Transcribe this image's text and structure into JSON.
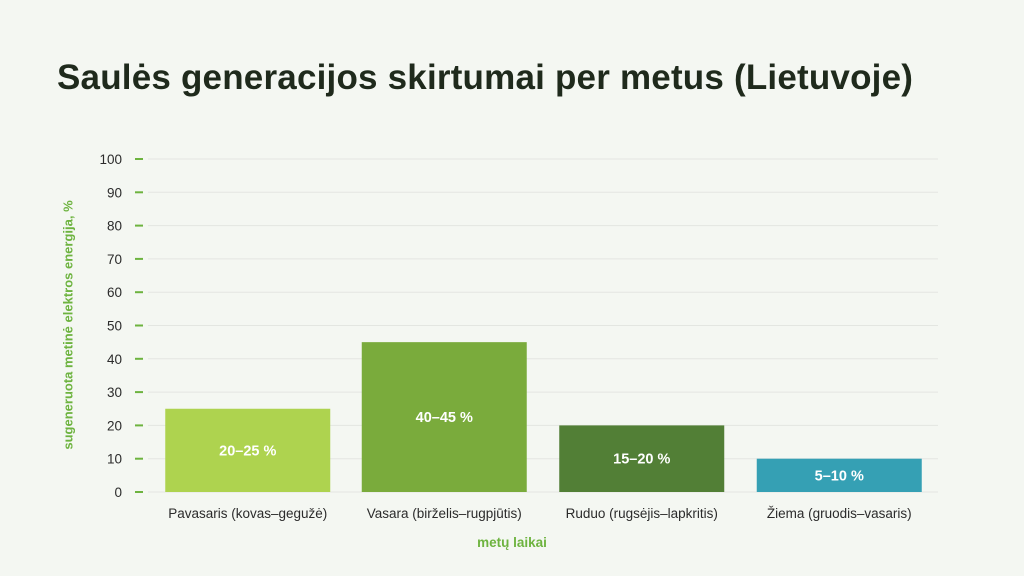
{
  "title": "Saulės generacijos skirtumai per metus (Lietuvoje)",
  "colors": {
    "axis_label": "#6db33f",
    "tick_mark": "#6db33f",
    "grid": "#e3e6e1",
    "bars": [
      "#aed34f",
      "#7aab3c",
      "#527f36",
      "#35a0b4"
    ]
  },
  "chart_data": {
    "type": "bar",
    "title": "Saulės generacijos skirtumai per metus (Lietuvoje)",
    "xlabel": "metų laikai",
    "ylabel": "sugeneruota metinė elektros energija, %",
    "ylim": [
      0,
      100
    ],
    "yticks": [
      0,
      10,
      20,
      30,
      40,
      50,
      60,
      70,
      80,
      90,
      100
    ],
    "grid": true,
    "categories": [
      "Pavasaris (kovas–gegužė)",
      "Vasara (birželis–rugpjūtis)",
      "Ruduo (rugsėjis–lapkritis)",
      "Žiema (gruodis–vasaris)"
    ],
    "values": [
      25,
      45,
      20,
      10
    ],
    "data_labels": [
      "20–25 %",
      "40–45 %",
      "15–20 %",
      "5–10 %"
    ]
  }
}
